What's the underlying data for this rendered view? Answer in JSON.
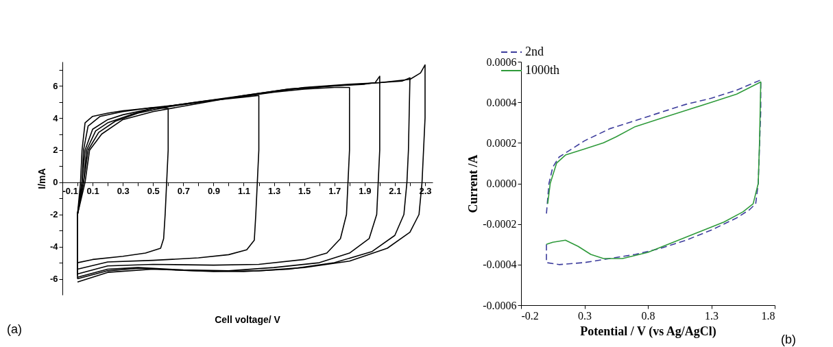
{
  "chart_data": [
    {
      "type": "line",
      "xlabel": "Cell voltage/ V",
      "ylabel": "I/mA",
      "annotations": [
        "(a)"
      ],
      "xlim": [
        -0.1,
        2.35
      ],
      "ylim": [
        -7,
        7.5
      ],
      "xticks": [
        -0.1,
        {
          "value": 0,
          "label": null
        },
        0.1,
        {
          "value": 0.2,
          "label": null
        },
        0.3,
        {
          "value": 0.4,
          "label": null
        },
        0.5,
        {
          "value": 0.6,
          "label": null
        },
        0.7,
        {
          "value": 0.8,
          "label": null
        },
        0.9,
        {
          "value": 1.0,
          "label": null
        },
        1.1,
        {
          "value": 1.2,
          "label": null
        },
        1.3,
        {
          "value": 1.4,
          "label": null
        },
        1.5,
        {
          "value": 1.6,
          "label": null
        },
        1.7,
        {
          "value": 1.8,
          "label": null
        },
        1.9,
        {
          "value": 2.0,
          "label": null
        },
        2.1,
        {
          "value": 2.2,
          "label": null
        },
        2.3
      ],
      "yticks": [
        -6,
        {
          "value": -5,
          "label": null
        },
        -4,
        {
          "value": -3,
          "label": null
        },
        -2,
        {
          "value": -1,
          "label": null
        },
        0,
        {
          "value": 1,
          "label": null
        },
        2,
        {
          "value": 3,
          "label": null
        },
        4,
        {
          "value": 5,
          "label": null
        },
        6,
        {
          "value": 7,
          "label": null
        }
      ],
      "grid": false,
      "legend": false,
      "line_style": "solid",
      "series": [
        {
          "color": "#000000",
          "x": [
            0.0,
            0.0,
            0.02,
            0.03,
            0.05,
            0.1,
            0.2,
            0.3,
            0.4,
            0.5,
            0.6,
            0.6,
            0.59,
            0.58,
            0.57,
            0.55,
            0.45,
            0.3,
            0.1,
            0.0
          ],
          "values": [
            -4.8,
            -2,
            0,
            2,
            3.7,
            4.1,
            4.3,
            4.45,
            4.55,
            4.65,
            4.6,
            2,
            0,
            -2,
            -3.5,
            -4.1,
            -4.4,
            -4.6,
            -4.8,
            -5.0
          ]
        },
        {
          "color": "#000000",
          "x": [
            0.0,
            0.0,
            0.03,
            0.04,
            0.07,
            0.15,
            0.3,
            0.5,
            0.7,
            0.9,
            1.1,
            1.2,
            1.2,
            1.19,
            1.18,
            1.17,
            1.12,
            1.0,
            0.8,
            0.5,
            0.2,
            0.0
          ],
          "values": [
            -5.2,
            -2,
            0,
            2,
            3.5,
            4.1,
            4.4,
            4.65,
            4.85,
            5.1,
            5.3,
            5.4,
            2,
            0,
            -2,
            -3.6,
            -4.2,
            -4.5,
            -4.7,
            -4.85,
            -4.95,
            -5.4
          ]
        },
        {
          "color": "#000000",
          "x": [
            0.0,
            0.0,
            0.03,
            0.05,
            0.1,
            0.2,
            0.3,
            0.5,
            0.8,
            1.1,
            1.3,
            1.5,
            1.7,
            1.8,
            1.8,
            1.79,
            1.78,
            1.74,
            1.65,
            1.5,
            1.2,
            0.9,
            0.5,
            0.2,
            0.0
          ],
          "values": [
            -5.5,
            -2,
            0,
            2,
            3.3,
            3.9,
            4.2,
            4.6,
            5.0,
            5.35,
            5.6,
            5.8,
            5.9,
            5.9,
            2,
            0,
            -2,
            -3.5,
            -4.4,
            -4.8,
            -5.1,
            -5.15,
            -5.1,
            -5.2,
            -5.7
          ]
        },
        {
          "color": "#000000",
          "x": [
            0.0,
            0.0,
            0.04,
            0.06,
            0.12,
            0.2,
            0.35,
            0.5,
            0.8,
            1.1,
            1.4,
            1.7,
            1.9,
            1.97,
            2.0,
            2.0,
            1.99,
            1.98,
            1.93,
            1.8,
            1.6,
            1.3,
            1.0,
            0.7,
            0.4,
            0.2,
            0.0
          ],
          "values": [
            -5.7,
            -2,
            0,
            2,
            3.2,
            3.7,
            4.2,
            4.6,
            5.0,
            5.4,
            5.8,
            6.0,
            6.1,
            6.2,
            6.6,
            2,
            0,
            -2,
            -3.5,
            -4.4,
            -5.0,
            -5.3,
            -5.5,
            -5.45,
            -5.3,
            -5.4,
            -5.9
          ]
        },
        {
          "color": "#000000",
          "x": [
            0.0,
            0.0,
            0.04,
            0.07,
            0.14,
            0.25,
            0.4,
            0.6,
            0.9,
            1.2,
            1.5,
            1.8,
            2.0,
            2.15,
            2.2,
            2.19,
            2.18,
            2.16,
            2.1,
            1.95,
            1.7,
            1.4,
            1.1,
            0.8,
            0.4,
            0.2,
            0.0
          ],
          "values": [
            -5.8,
            -2,
            0,
            2,
            3.1,
            3.8,
            4.3,
            4.7,
            5.1,
            5.5,
            5.9,
            6.1,
            6.2,
            6.3,
            6.5,
            2,
            0,
            -2,
            -3.3,
            -4.3,
            -5.0,
            -5.4,
            -5.55,
            -5.5,
            -5.35,
            -5.5,
            -6.0
          ]
        },
        {
          "color": "#000000",
          "x": [
            0.0,
            0.0,
            0.05,
            0.08,
            0.16,
            0.3,
            0.5,
            0.8,
            1.1,
            1.4,
            1.7,
            2.0,
            2.2,
            2.27,
            2.3,
            2.3,
            2.29,
            2.28,
            2.26,
            2.2,
            2.05,
            1.8,
            1.5,
            1.2,
            0.9,
            0.5,
            0.2,
            0.0
          ],
          "values": [
            -6.0,
            -2,
            0,
            2,
            3.0,
            3.9,
            4.4,
            4.9,
            5.4,
            5.8,
            6.0,
            6.2,
            6.4,
            6.8,
            7.3,
            4,
            2,
            0,
            -2,
            -3.1,
            -4.1,
            -4.9,
            -5.3,
            -5.5,
            -5.55,
            -5.4,
            -5.6,
            -6.2
          ]
        }
      ]
    },
    {
      "type": "line",
      "xlabel": "Potential / V (vs Ag/AgCl)",
      "ylabel": "Current /A",
      "annotations": [
        "(b)"
      ],
      "xlim": [
        -0.2,
        1.8
      ],
      "ylim": [
        -0.0006,
        0.0006
      ],
      "xticks": [
        -0.2,
        0.3,
        0.8,
        1.3,
        1.8
      ],
      "yticks": [
        -0.0006,
        -0.0004,
        -0.0002,
        {
          "value": 0,
          "label": "0.0000"
        },
        0.0002,
        0.0004,
        0.0006
      ],
      "grid": false,
      "legend": "top left",
      "series": [
        {
          "name": "2nd",
          "color": "#3c3c9c",
          "line_style": "dashed",
          "x": [
            0.0,
            0.0,
            0.1,
            0.3,
            0.5,
            0.7,
            0.9,
            1.1,
            1.3,
            1.5,
            1.6,
            1.65,
            1.67,
            1.69,
            1.69,
            1.5,
            1.3,
            1.1,
            0.9,
            0.7,
            0.5,
            0.3,
            0.2,
            0.1,
            0.05,
            0.02,
            0.0
          ],
          "values": [
            -0.0003,
            -0.00039,
            -0.0004,
            -0.00039,
            -0.00037,
            -0.00035,
            -0.00032,
            -0.00028,
            -0.00023,
            -0.00017,
            -0.00013,
            -0.0001,
            0.0,
            0.00036,
            0.00051,
            0.00046,
            0.00042,
            0.00039,
            0.00035,
            0.00031,
            0.00027,
            0.00021,
            0.00017,
            0.00013,
            8e-05,
            0.0,
            -0.00015
          ]
        },
        {
          "name": "1000th",
          "color": "#2e9a3a",
          "line_style": "solid",
          "x": [
            0.0,
            0.05,
            0.15,
            0.25,
            0.35,
            0.45,
            0.6,
            0.8,
            1.0,
            1.2,
            1.4,
            1.55,
            1.63,
            1.67,
            1.68,
            1.69,
            1.5,
            1.3,
            1.1,
            0.9,
            0.7,
            0.55,
            0.45,
            0.3,
            0.15,
            0.08,
            0.03,
            0.01
          ],
          "values": [
            -0.0003,
            -0.00029,
            -0.00028,
            -0.00031,
            -0.00035,
            -0.00037,
            -0.00037,
            -0.00034,
            -0.00029,
            -0.00024,
            -0.00019,
            -0.00014,
            -0.0001,
            0.0,
            0.0002,
            0.0005,
            0.00044,
            0.0004,
            0.00036,
            0.00032,
            0.00028,
            0.00023,
            0.0002,
            0.00017,
            0.00014,
            0.0001,
            0.0,
            -0.0001
          ]
        }
      ]
    }
  ]
}
